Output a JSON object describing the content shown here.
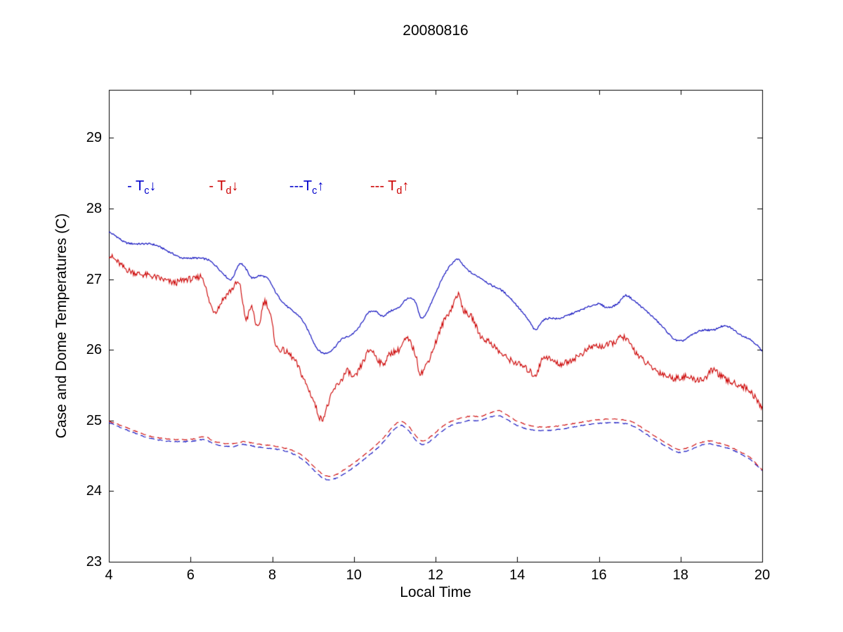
{
  "chart_data": {
    "type": "line",
    "title": "20080816",
    "xlabel": "Local Time",
    "ylabel": "Case and Dome Temperatures (C)",
    "xlim": [
      4,
      20
    ],
    "ylim": [
      23,
      29.68
    ],
    "xticks": [
      4,
      6,
      8,
      10,
      12,
      14,
      16,
      18,
      20
    ],
    "yticks": [
      23,
      24,
      25,
      26,
      27,
      28,
      29
    ],
    "grid": false,
    "legend_position": "inside-top-left",
    "legend": [
      {
        "prefix": "- ",
        "base": "T",
        "sub": "c",
        "arrow": "↓",
        "color": "#0000cc",
        "x": 4.45,
        "y": 28.3
      },
      {
        "prefix": "- ",
        "base": "T",
        "sub": "d",
        "arrow": "↓",
        "color": "#cc0000",
        "x": 6.45,
        "y": 28.3
      },
      {
        "prefix": "---",
        "base": "T",
        "sub": "c",
        "arrow": "↑",
        "color": "#0000cc",
        "x": 8.42,
        "y": 28.3
      },
      {
        "prefix": "--- ",
        "base": "T",
        "sub": "d",
        "arrow": "↑",
        "color": "#cc0000",
        "x": 10.4,
        "y": 28.3
      }
    ],
    "series": [
      {
        "name": "Tc_down",
        "color": "#0000bb",
        "style": "solid",
        "noise": 0.012,
        "x": [
          4.0,
          4.2,
          4.4,
          4.7,
          5.0,
          5.2,
          5.5,
          5.8,
          6.1,
          6.4,
          6.6,
          6.8,
          7.0,
          7.2,
          7.35,
          7.5,
          7.7,
          7.9,
          8.1,
          8.3,
          8.5,
          8.7,
          8.9,
          9.1,
          9.3,
          9.5,
          9.7,
          9.9,
          10.1,
          10.35,
          10.5,
          10.7,
          10.9,
          11.1,
          11.3,
          11.5,
          11.65,
          11.8,
          12.0,
          12.2,
          12.4,
          12.55,
          12.7,
          12.9,
          13.1,
          13.35,
          13.6,
          13.85,
          14.1,
          14.3,
          14.45,
          14.6,
          14.8,
          15.0,
          15.2,
          15.5,
          15.8,
          16.0,
          16.2,
          16.45,
          16.65,
          16.85,
          17.1,
          17.35,
          17.6,
          17.85,
          18.05,
          18.3,
          18.55,
          18.8,
          19.0,
          19.2,
          19.45,
          19.7,
          19.9,
          20.0
        ],
        "y": [
          27.67,
          27.6,
          27.52,
          27.5,
          27.5,
          27.47,
          27.38,
          27.3,
          27.3,
          27.28,
          27.2,
          27.08,
          27.0,
          27.22,
          27.15,
          27.02,
          27.05,
          27.0,
          26.8,
          26.65,
          26.55,
          26.45,
          26.25,
          26.02,
          25.95,
          26.02,
          26.15,
          26.2,
          26.3,
          26.52,
          26.55,
          26.48,
          26.55,
          26.6,
          26.72,
          26.68,
          26.45,
          26.55,
          26.8,
          27.05,
          27.22,
          27.28,
          27.18,
          27.08,
          27.02,
          26.92,
          26.85,
          26.72,
          26.55,
          26.4,
          26.28,
          26.4,
          26.45,
          26.44,
          26.48,
          26.55,
          26.62,
          26.65,
          26.6,
          26.65,
          26.77,
          26.7,
          26.58,
          26.45,
          26.3,
          26.15,
          26.13,
          26.22,
          26.28,
          26.28,
          26.33,
          26.32,
          26.22,
          26.15,
          26.05,
          25.97
        ]
      },
      {
        "name": "Td_down",
        "color": "#cc0000",
        "style": "solid",
        "noise": 0.045,
        "x": [
          4.0,
          4.2,
          4.4,
          4.7,
          5.0,
          5.3,
          5.6,
          5.9,
          6.1,
          6.3,
          6.45,
          6.6,
          6.8,
          7.0,
          7.2,
          7.35,
          7.5,
          7.65,
          7.8,
          7.95,
          8.1,
          8.25,
          8.45,
          8.6,
          8.8,
          9.0,
          9.2,
          9.35,
          9.5,
          9.7,
          9.85,
          10.0,
          10.2,
          10.4,
          10.55,
          10.7,
          10.9,
          11.1,
          11.3,
          11.5,
          11.62,
          11.8,
          12.0,
          12.2,
          12.4,
          12.55,
          12.7,
          12.9,
          13.1,
          13.35,
          13.6,
          13.85,
          14.1,
          14.3,
          14.45,
          14.65,
          14.85,
          15.05,
          15.3,
          15.6,
          15.85,
          16.1,
          16.35,
          16.6,
          16.8,
          17.0,
          17.3,
          17.6,
          17.85,
          18.1,
          18.35,
          18.6,
          18.8,
          19.0,
          19.2,
          19.45,
          19.7,
          19.85,
          20.0
        ],
        "y": [
          27.35,
          27.25,
          27.15,
          27.08,
          27.05,
          27.0,
          26.95,
          27.0,
          27.0,
          27.02,
          26.7,
          26.55,
          26.72,
          26.85,
          26.92,
          26.45,
          26.6,
          26.3,
          26.68,
          26.5,
          26.05,
          26.0,
          25.92,
          25.8,
          25.55,
          25.3,
          25.02,
          25.2,
          25.42,
          25.58,
          25.7,
          25.6,
          25.8,
          26.0,
          25.9,
          25.8,
          25.95,
          26.0,
          26.15,
          25.95,
          25.68,
          25.82,
          26.1,
          26.4,
          26.6,
          26.78,
          26.55,
          26.45,
          26.2,
          26.1,
          25.95,
          25.85,
          25.78,
          25.7,
          25.65,
          25.9,
          25.85,
          25.8,
          25.85,
          25.95,
          26.05,
          26.05,
          26.1,
          26.18,
          26.05,
          25.9,
          25.75,
          25.65,
          25.6,
          25.62,
          25.58,
          25.6,
          25.72,
          25.62,
          25.55,
          25.5,
          25.42,
          25.3,
          25.17
        ]
      },
      {
        "name": "Tc_up",
        "color": "#0000bb",
        "style": "dashed",
        "noise": 0.006,
        "x": [
          4.0,
          4.3,
          4.6,
          5.0,
          5.4,
          5.8,
          6.1,
          6.35,
          6.6,
          7.0,
          7.3,
          7.6,
          8.0,
          8.3,
          8.6,
          8.85,
          9.05,
          9.3,
          9.55,
          9.8,
          10.1,
          10.4,
          10.7,
          10.95,
          11.15,
          11.35,
          11.55,
          11.7,
          11.9,
          12.1,
          12.35,
          12.6,
          12.85,
          13.1,
          13.35,
          13.55,
          13.8,
          14.0,
          14.25,
          14.5,
          14.8,
          15.1,
          15.4,
          15.7,
          16.0,
          16.3,
          16.6,
          16.85,
          17.1,
          17.4,
          17.7,
          17.95,
          18.2,
          18.45,
          18.7,
          18.95,
          19.2,
          19.45,
          19.7,
          19.85,
          20.0
        ],
        "y": [
          24.97,
          24.9,
          24.83,
          24.75,
          24.71,
          24.7,
          24.71,
          24.73,
          24.66,
          24.63,
          24.66,
          24.63,
          24.6,
          24.57,
          24.5,
          24.4,
          24.28,
          24.17,
          24.18,
          24.26,
          24.38,
          24.52,
          24.68,
          24.85,
          24.93,
          24.85,
          24.7,
          24.66,
          24.72,
          24.82,
          24.92,
          24.97,
          25.0,
          25.0,
          25.05,
          25.07,
          25.0,
          24.93,
          24.88,
          24.86,
          24.86,
          24.88,
          24.91,
          24.94,
          24.96,
          24.97,
          24.96,
          24.92,
          24.83,
          24.72,
          24.62,
          24.55,
          24.58,
          24.64,
          24.67,
          24.64,
          24.6,
          24.53,
          24.45,
          24.37,
          24.29
        ]
      },
      {
        "name": "Td_up",
        "color": "#cc0000",
        "style": "dashed",
        "noise": 0.006,
        "x": [
          4.0,
          4.3,
          4.6,
          5.0,
          5.4,
          5.8,
          6.1,
          6.35,
          6.6,
          7.0,
          7.3,
          7.6,
          8.0,
          8.3,
          8.6,
          8.85,
          9.05,
          9.3,
          9.55,
          9.8,
          10.1,
          10.4,
          10.7,
          10.95,
          11.15,
          11.35,
          11.55,
          11.7,
          11.9,
          12.1,
          12.35,
          12.6,
          12.85,
          13.1,
          13.35,
          13.55,
          13.8,
          14.0,
          14.25,
          14.5,
          14.8,
          15.1,
          15.4,
          15.7,
          16.0,
          16.3,
          16.6,
          16.85,
          17.1,
          17.4,
          17.7,
          17.95,
          18.2,
          18.45,
          18.7,
          18.95,
          19.2,
          19.45,
          19.7,
          19.85,
          20.0
        ],
        "y": [
          24.99,
          24.93,
          24.86,
          24.78,
          24.74,
          24.73,
          24.74,
          24.77,
          24.7,
          24.67,
          24.7,
          24.67,
          24.64,
          24.61,
          24.55,
          24.45,
          24.33,
          24.22,
          24.23,
          24.32,
          24.44,
          24.58,
          24.74,
          24.91,
          24.99,
          24.91,
          24.76,
          24.71,
          24.78,
          24.88,
          24.98,
          25.03,
          25.06,
          25.06,
          25.11,
          25.14,
          25.06,
          24.99,
          24.94,
          24.91,
          24.91,
          24.93,
          24.96,
          24.99,
          25.01,
          25.02,
          25.01,
          24.97,
          24.88,
          24.77,
          24.66,
          24.59,
          24.62,
          24.68,
          24.71,
          24.68,
          24.63,
          24.56,
          24.48,
          24.39,
          24.3
        ]
      }
    ]
  }
}
